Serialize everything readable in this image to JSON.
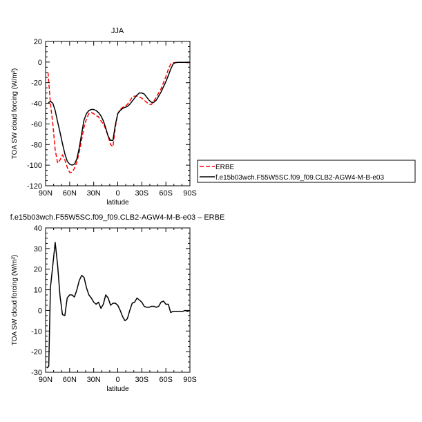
{
  "chart_data": [
    {
      "type": "line",
      "title": "JJA",
      "xlabel": "latitude",
      "ylabel": "TOA SW cloud forcing (W/m²)",
      "xlim": [
        -90,
        90
      ],
      "ylim": [
        -120,
        20
      ],
      "x_ticks": [
        {
          "value": -90,
          "label": "90N"
        },
        {
          "value": -60,
          "label": "60N"
        },
        {
          "value": -30,
          "label": "30N"
        },
        {
          "value": 0,
          "label": "0"
        },
        {
          "value": 30,
          "label": "30S"
        },
        {
          "value": 60,
          "label": "60S"
        },
        {
          "value": 90,
          "label": "90S"
        }
      ],
      "y_ticks": [
        20,
        0,
        -20,
        -40,
        -60,
        -80,
        -100,
        -120
      ],
      "legend_position": "right, outside plot",
      "series": [
        {
          "name": "ERBE",
          "color": "#ff0000",
          "dash": true,
          "x": [
            -87,
            -84,
            -81,
            -78,
            -75,
            -72,
            -69,
            -66,
            -63,
            -60,
            -57,
            -54,
            -51,
            -48,
            -45,
            -42,
            -39,
            -36,
            -33,
            -30,
            -27,
            -24,
            -21,
            -18,
            -15,
            -12,
            -9,
            -6,
            -3,
            0,
            3,
            6,
            9,
            12,
            15,
            18,
            21,
            24,
            27,
            30,
            33,
            36,
            39,
            42,
            45,
            48,
            51,
            54,
            57,
            60,
            63,
            66,
            69,
            72,
            75,
            78,
            81,
            84,
            87,
            90
          ],
          "y": [
            -10,
            -40,
            -60,
            -85,
            -98,
            -95,
            -90,
            -95,
            -102,
            -107,
            -107,
            -103,
            -97,
            -87,
            -75,
            -63,
            -55,
            -50,
            -49,
            -50,
            -52,
            -53,
            -57,
            -60,
            -65,
            -72,
            -80,
            -82,
            -63,
            -50,
            -46,
            -44,
            -43,
            -41,
            -38,
            -34,
            -33,
            -33,
            -34,
            -35,
            -37,
            -39,
            -41,
            -41,
            -38,
            -34,
            -30,
            -26,
            -20,
            -14,
            -7,
            -2,
            -0.5,
            -0.5,
            -0.3,
            -0.3,
            -0.3,
            -0.3,
            -0.5,
            -0.5
          ]
        },
        {
          "name": "f.e15b03wch.F55W5SC.f09_f09.CLB2-AGW4-M-B-e03",
          "color": "#000000",
          "dash": false,
          "x": [
            -87,
            -84,
            -81,
            -78,
            -75,
            -72,
            -69,
            -66,
            -63,
            -60,
            -57,
            -54,
            -51,
            -48,
            -45,
            -42,
            -39,
            -36,
            -33,
            -30,
            -27,
            -24,
            -21,
            -18,
            -15,
            -12,
            -9,
            -6,
            -3,
            0,
            3,
            6,
            9,
            12,
            15,
            18,
            21,
            24,
            27,
            30,
            33,
            36,
            39,
            42,
            45,
            48,
            51,
            54,
            57,
            60,
            63,
            66,
            69,
            72,
            75,
            78,
            81,
            84,
            87,
            90
          ],
          "y": [
            -40,
            -38,
            -40,
            -47,
            -58,
            -68,
            -79,
            -89,
            -96,
            -99,
            -100,
            -99,
            -94,
            -83,
            -69,
            -56,
            -50,
            -47,
            -46,
            -46,
            -47,
            -49,
            -52,
            -57,
            -64,
            -72,
            -76,
            -76,
            -61,
            -50,
            -47,
            -45,
            -44,
            -43,
            -41,
            -38,
            -35,
            -32,
            -30,
            -30,
            -31,
            -34,
            -37,
            -39,
            -39,
            -37,
            -33,
            -29,
            -24,
            -19,
            -13,
            -7,
            -2,
            -0.5,
            -0.3,
            -0.3,
            -0.3,
            -0.3,
            -0.3,
            -0.3
          ]
        }
      ]
    },
    {
      "type": "line",
      "title": "f.e15b03wch.F55W5SC.f09_f09.CLB2-AGW4-M-B-e03 – ERBE",
      "xlabel": "latitude",
      "ylabel": "TOA SW cloud forcing (W/m²)",
      "xlim": [
        -90,
        90
      ],
      "ylim": [
        -30,
        40
      ],
      "x_ticks": [
        {
          "value": -90,
          "label": "90N"
        },
        {
          "value": -60,
          "label": "60N"
        },
        {
          "value": -30,
          "label": "30N"
        },
        {
          "value": 0,
          "label": "0"
        },
        {
          "value": 30,
          "label": "30S"
        },
        {
          "value": 60,
          "label": "60S"
        },
        {
          "value": 90,
          "label": "90S"
        }
      ],
      "y_ticks": [
        40,
        30,
        20,
        10,
        0,
        -10,
        -20,
        -30
      ],
      "series": [
        {
          "color": "#000000",
          "dash": false,
          "x": [
            -88,
            -86,
            -84,
            -81,
            -78,
            -75,
            -72,
            -69,
            -66,
            -63,
            -60,
            -57,
            -54,
            -51,
            -48,
            -45,
            -42,
            -39,
            -36,
            -33,
            -30,
            -27,
            -24,
            -21,
            -18,
            -15,
            -12,
            -9,
            -6,
            -3,
            0,
            3,
            6,
            9,
            12,
            15,
            18,
            21,
            24,
            27,
            30,
            33,
            36,
            39,
            42,
            45,
            48,
            51,
            54,
            57,
            60,
            63,
            66,
            69,
            72,
            75,
            78,
            81,
            84,
            87,
            90
          ],
          "y": [
            -28,
            -27,
            11,
            22,
            33,
            22,
            7,
            -2,
            -2.5,
            6,
            7.5,
            7.5,
            6.5,
            10,
            14.5,
            17,
            16,
            11,
            7.5,
            6,
            4,
            3,
            4,
            1,
            3,
            7.5,
            6,
            2.5,
            3.5,
            3.5,
            2.5,
            0,
            -3,
            -5,
            -4,
            0,
            3.5,
            4,
            6,
            5,
            4,
            2,
            1.5,
            1.5,
            2,
            2,
            1.5,
            2,
            4,
            4.5,
            3,
            3,
            -1,
            -0.5,
            -0.5,
            -0.5,
            -0.5,
            -0.5,
            0,
            -0.5,
            0
          ]
        }
      ]
    }
  ]
}
